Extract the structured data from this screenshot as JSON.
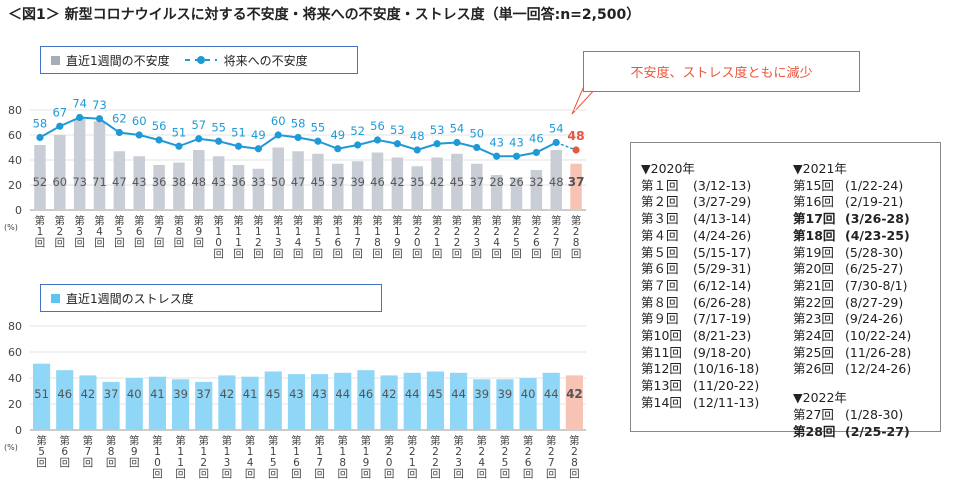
{
  "title": "＜図1＞ 新型コロナウイルスに対する不安度・将来への不安度・ストレス度（単一回答:n=2,500）",
  "callout": "不安度、ストレス度ともに減少",
  "colors": {
    "anxiety_bar": "#c9ced6",
    "future_line": "#1f9ad6",
    "stress_bar": "#8fd6f7",
    "highlight_bar": "#f7c3b5",
    "highlight_text": "#e9573f",
    "border": "#4472c4"
  },
  "chart_data": [
    {
      "type": "bar+line",
      "title": "",
      "ylabel": "(%)",
      "ylim": [
        0,
        80
      ],
      "yticks": [
        0,
        20,
        40,
        60,
        80
      ],
      "categories": [
        "第1回",
        "第2回",
        "第3回",
        "第4回",
        "第5回",
        "第6回",
        "第7回",
        "第8回",
        "第9回",
        "第10回",
        "第11回",
        "第12回",
        "第13回",
        "第14回",
        "第15回",
        "第16回",
        "第17回",
        "第18回",
        "第19回",
        "第20回",
        "第21回",
        "第22回",
        "第23回",
        "第24回",
        "第25回",
        "第26回",
        "第27回",
        "第28回"
      ],
      "series": [
        {
          "name": "直近1週間の不安度",
          "type": "bar",
          "values": [
            52,
            60,
            73,
            71,
            47,
            43,
            36,
            38,
            48,
            43,
            36,
            33,
            50,
            47,
            45,
            37,
            39,
            46,
            42,
            35,
            42,
            45,
            37,
            28,
            26,
            32,
            48,
            37
          ]
        },
        {
          "name": "将来への不安度",
          "type": "line",
          "values": [
            58,
            67,
            74,
            73,
            62,
            60,
            56,
            51,
            57,
            55,
            51,
            49,
            60,
            58,
            55,
            49,
            52,
            56,
            53,
            48,
            53,
            54,
            50,
            43,
            43,
            46,
            54,
            48
          ]
        }
      ],
      "legend": "top-left"
    },
    {
      "type": "bar",
      "title": "",
      "ylabel": "(%)",
      "ylim": [
        0,
        80
      ],
      "yticks": [
        0,
        20,
        40,
        60,
        80
      ],
      "categories": [
        "第5回",
        "第6回",
        "第7回",
        "第8回",
        "第9回",
        "第10回",
        "第11回",
        "第12回",
        "第13回",
        "第14回",
        "第15回",
        "第16回",
        "第17回",
        "第18回",
        "第19回",
        "第20回",
        "第21回",
        "第22回",
        "第23回",
        "第24回",
        "第25回",
        "第26回",
        "第27回",
        "第28回"
      ],
      "series": [
        {
          "name": "直近1週間のストレス度",
          "type": "bar",
          "values": [
            51,
            46,
            42,
            37,
            40,
            41,
            39,
            37,
            42,
            41,
            45,
            43,
            43,
            44,
            46,
            42,
            44,
            45,
            44,
            39,
            39,
            40,
            44,
            42
          ]
        }
      ],
      "legend": "top-left"
    }
  ],
  "schedule": {
    "left": {
      "heading": "▼2020年",
      "rows": [
        {
          "no": "第１回",
          "date": "(3/12-13)"
        },
        {
          "no": "第２回",
          "date": "(3/27-29)"
        },
        {
          "no": "第３回",
          "date": "(4/13-14)"
        },
        {
          "no": "第４回",
          "date": "(4/24-26)"
        },
        {
          "no": "第５回",
          "date": "(5/15-17)"
        },
        {
          "no": "第６回",
          "date": "(5/29-31)"
        },
        {
          "no": "第７回",
          "date": "(6/12-14)"
        },
        {
          "no": "第８回",
          "date": "(6/26-28)"
        },
        {
          "no": "第９回",
          "date": "(7/17-19)"
        },
        {
          "no": "第10回",
          "date": "(8/21-23)"
        },
        {
          "no": "第11回",
          "date": "(9/18-20)"
        },
        {
          "no": "第12回",
          "date": "(10/16-18)"
        },
        {
          "no": "第13回",
          "date": "(11/20-22)"
        },
        {
          "no": "第14回",
          "date": "(12/11-13)"
        }
      ]
    },
    "right": {
      "heading": "▼2021年",
      "rows": [
        {
          "no": "第15回",
          "date": "(1/22-24)"
        },
        {
          "no": "第16回",
          "date": "(2/19-21)"
        },
        {
          "no": "第17回",
          "date": "(3/26-28)"
        },
        {
          "no": "第18回",
          "date": "(4/23-25)"
        },
        {
          "no": "第19回",
          "date": "(5/28-30)"
        },
        {
          "no": "第20回",
          "date": "(6/25-27)"
        },
        {
          "no": "第21回",
          "date": "(7/30-8/1)"
        },
        {
          "no": "第22回",
          "date": "(8/27-29)"
        },
        {
          "no": "第23回",
          "date": "(9/24-26)"
        },
        {
          "no": "第24回",
          "date": "(10/22-24)"
        },
        {
          "no": "第25回",
          "date": "(11/26-28)"
        },
        {
          "no": "第26回",
          "date": "(12/24-26)"
        }
      ],
      "heading2": "▼2022年",
      "rows2": [
        {
          "no": "第27回",
          "date": "(1/28-30)"
        },
        {
          "no": "第28回",
          "date": "(2/25-27)"
        }
      ]
    }
  }
}
